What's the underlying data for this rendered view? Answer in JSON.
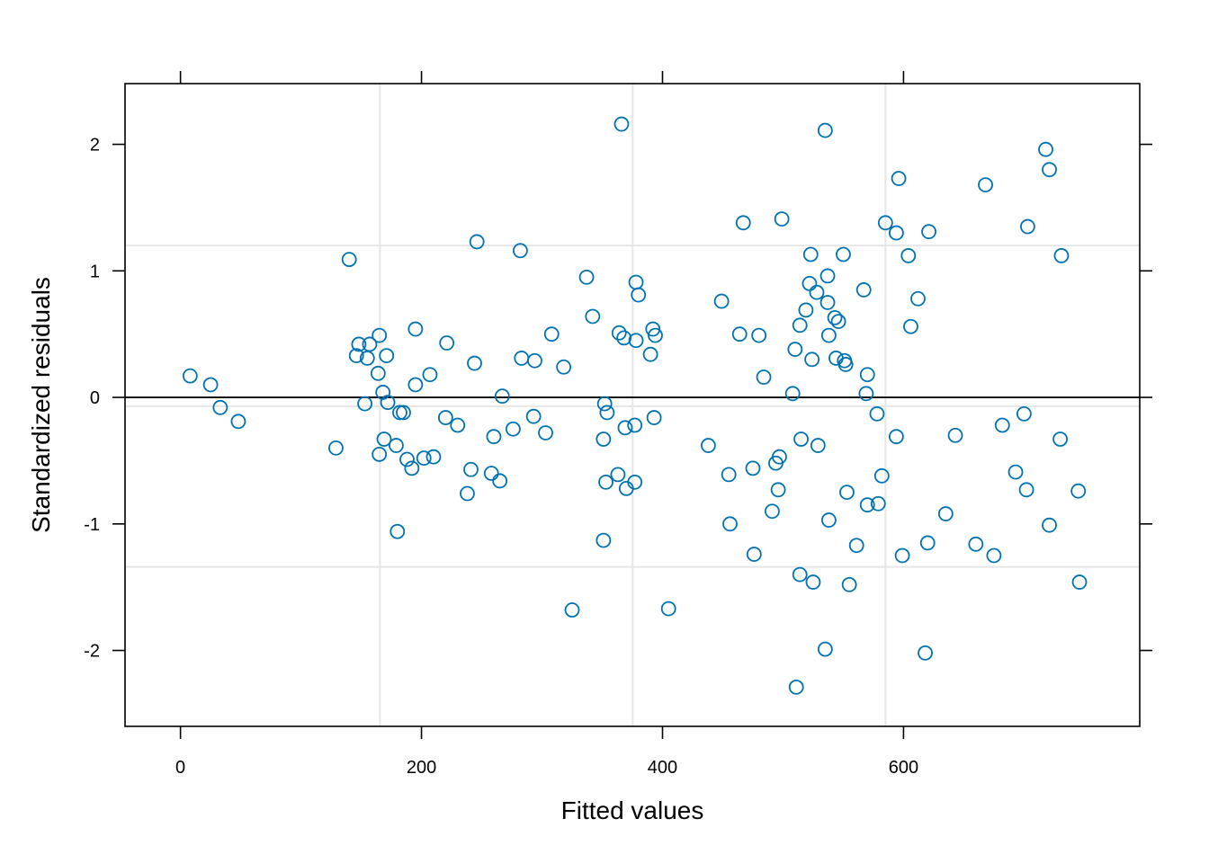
{
  "chart_data": {
    "type": "scatter",
    "title": "",
    "xlabel": "Fitted values",
    "ylabel": "Standardized residuals",
    "xlim": [
      -46,
      796
    ],
    "ylim": [
      -2.6,
      2.48
    ],
    "xticks": [
      0,
      200,
      400,
      600
    ],
    "yticks": [
      -2,
      -1,
      0,
      1,
      2
    ],
    "grid": true,
    "vertical_grid_x": [
      165.5,
      375.2,
      585.0
    ],
    "horizontal_grid_y": [
      1.2,
      -0.07,
      -1.34
    ],
    "zero_line_y": 0,
    "marker_color": "#0072B2",
    "marker": "open-circle",
    "points": [
      [
        8,
        0.17
      ],
      [
        25,
        0.1
      ],
      [
        33,
        -0.08
      ],
      [
        48,
        -0.19
      ],
      [
        129,
        -0.4
      ],
      [
        140,
        1.09
      ],
      [
        146,
        0.33
      ],
      [
        148,
        0.42
      ],
      [
        153,
        -0.05
      ],
      [
        155,
        0.31
      ],
      [
        157,
        0.42
      ],
      [
        164,
        0.19
      ],
      [
        165,
        0.49
      ],
      [
        165,
        -0.45
      ],
      [
        168,
        0.04
      ],
      [
        169,
        -0.33
      ],
      [
        171,
        0.33
      ],
      [
        172,
        -0.04
      ],
      [
        179,
        -0.38
      ],
      [
        180,
        -1.06
      ],
      [
        182,
        -0.12
      ],
      [
        185,
        -0.12
      ],
      [
        188,
        -0.49
      ],
      [
        192,
        -0.56
      ],
      [
        195,
        0.54
      ],
      [
        195,
        0.1
      ],
      [
        202,
        -0.48
      ],
      [
        207,
        0.18
      ],
      [
        210,
        -0.47
      ],
      [
        220,
        -0.16
      ],
      [
        221,
        0.43
      ],
      [
        230,
        -0.22
      ],
      [
        238,
        -0.76
      ],
      [
        241,
        -0.57
      ],
      [
        244,
        0.27
      ],
      [
        246,
        1.23
      ],
      [
        258,
        -0.6
      ],
      [
        260,
        -0.31
      ],
      [
        265,
        -0.66
      ],
      [
        267,
        0.01
      ],
      [
        276,
        -0.25
      ],
      [
        282,
        1.16
      ],
      [
        283,
        0.31
      ],
      [
        293,
        -0.15
      ],
      [
        294,
        0.29
      ],
      [
        303,
        -0.28
      ],
      [
        308,
        0.5
      ],
      [
        318,
        0.24
      ],
      [
        325,
        -1.68
      ],
      [
        337,
        0.95
      ],
      [
        342,
        0.64
      ],
      [
        351,
        -0.33
      ],
      [
        351,
        -1.13
      ],
      [
        352,
        -0.05
      ],
      [
        353,
        -0.67
      ],
      [
        354,
        -0.12
      ],
      [
        363,
        -0.61
      ],
      [
        364,
        0.51
      ],
      [
        366,
        2.16
      ],
      [
        368,
        0.47
      ],
      [
        369,
        -0.24
      ],
      [
        370,
        -0.72
      ],
      [
        377,
        -0.67
      ],
      [
        377,
        -0.22
      ],
      [
        378,
        0.45
      ],
      [
        378,
        0.91
      ],
      [
        380,
        0.81
      ],
      [
        390,
        0.34
      ],
      [
        392,
        0.54
      ],
      [
        393,
        -0.16
      ],
      [
        394,
        0.49
      ],
      [
        405,
        -1.67
      ],
      [
        438,
        -0.38
      ],
      [
        449,
        0.76
      ],
      [
        455,
        -0.61
      ],
      [
        456,
        -1.0
      ],
      [
        464,
        0.5
      ],
      [
        467,
        1.38
      ],
      [
        475,
        -0.56
      ],
      [
        476,
        -1.24
      ],
      [
        480,
        0.49
      ],
      [
        484,
        0.16
      ],
      [
        491,
        -0.9
      ],
      [
        494,
        -0.52
      ],
      [
        496,
        -0.73
      ],
      [
        497,
        -0.47
      ],
      [
        499,
        1.41
      ],
      [
        508,
        0.03
      ],
      [
        510,
        0.38
      ],
      [
        511,
        -2.29
      ],
      [
        514,
        0.57
      ],
      [
        514,
        -1.4
      ],
      [
        515,
        -0.33
      ],
      [
        519,
        0.69
      ],
      [
        522,
        0.9
      ],
      [
        523,
        1.13
      ],
      [
        524,
        0.3
      ],
      [
        525,
        -1.46
      ],
      [
        528,
        0.83
      ],
      [
        529,
        -0.38
      ],
      [
        535,
        2.11
      ],
      [
        535,
        -1.99
      ],
      [
        537,
        0.96
      ],
      [
        537,
        0.75
      ],
      [
        538,
        0.49
      ],
      [
        538,
        -0.97
      ],
      [
        543,
        0.63
      ],
      [
        544,
        0.31
      ],
      [
        546,
        0.6
      ],
      [
        550,
        1.13
      ],
      [
        551,
        0.29
      ],
      [
        552,
        0.26
      ],
      [
        553,
        -0.75
      ],
      [
        555,
        -1.48
      ],
      [
        561,
        -1.17
      ],
      [
        567,
        0.85
      ],
      [
        569,
        0.03
      ],
      [
        570,
        0.18
      ],
      [
        570,
        -0.85
      ],
      [
        578,
        -0.13
      ],
      [
        579,
        -0.84
      ],
      [
        582,
        -0.62
      ],
      [
        585,
        1.38
      ],
      [
        594,
        1.3
      ],
      [
        594,
        -0.31
      ],
      [
        596,
        1.73
      ],
      [
        599,
        -1.25
      ],
      [
        604,
        1.12
      ],
      [
        606,
        0.56
      ],
      [
        612,
        0.78
      ],
      [
        618,
        -2.02
      ],
      [
        620,
        -1.15
      ],
      [
        621,
        1.31
      ],
      [
        635,
        -0.92
      ],
      [
        643,
        -0.3
      ],
      [
        660,
        -1.16
      ],
      [
        668,
        1.68
      ],
      [
        675,
        -1.25
      ],
      [
        682,
        -0.22
      ],
      [
        693,
        -0.59
      ],
      [
        700,
        -0.13
      ],
      [
        702,
        -0.73
      ],
      [
        703,
        1.35
      ],
      [
        718,
        1.96
      ],
      [
        721,
        -1.01
      ],
      [
        721,
        1.8
      ],
      [
        730,
        -0.33
      ],
      [
        731,
        1.12
      ],
      [
        745,
        -0.74
      ],
      [
        746,
        -1.46
      ]
    ]
  }
}
